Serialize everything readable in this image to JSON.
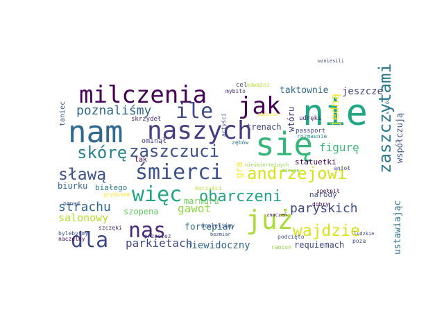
{
  "words": [
    {
      "text": "nie",
      "color": "#21a685"
    },
    {
      "text": "się",
      "color": "#35b779"
    },
    {
      "text": "nam",
      "color": "#31688e"
    },
    {
      "text": "naszych",
      "color": "#443b84"
    },
    {
      "text": "milczenia",
      "color": "#440154"
    },
    {
      "text": "jak",
      "color": "#440154"
    },
    {
      "text": "ile",
      "color": "#3e4989"
    },
    {
      "text": "już",
      "color": "#a8db34"
    },
    {
      "text": "śmierci",
      "color": "#3b528b"
    },
    {
      "text": "więc",
      "color": "#21a685"
    },
    {
      "text": "dla",
      "color": "#3e4989"
    },
    {
      "text": "nas",
      "color": "#482878"
    },
    {
      "text": "zaszczuci",
      "color": "#3b528b"
    },
    {
      "text": "skórę",
      "color": "#26828e"
    },
    {
      "text": "sławą",
      "color": "#3b528b"
    },
    {
      "text": "andrzejowi",
      "color": "#d8e219"
    },
    {
      "text": "obarczeni",
      "color": "#20a486"
    },
    {
      "text": "wajdzie",
      "color": "#d8e219"
    },
    {
      "text": "zaszczytami",
      "color": "#2a788e"
    },
    {
      "text": "poznaliśmy",
      "color": "#31688e"
    },
    {
      "text": "strachu",
      "color": "#31688e"
    },
    {
      "text": "paryskich",
      "color": "#3e4989"
    },
    {
      "text": "parkietach",
      "color": "#3e4989"
    },
    {
      "text": "niewidoczny",
      "color": "#31688e"
    },
    {
      "text": "jeszcze",
      "color": "#414487"
    },
    {
      "text": "taktownie",
      "color": "#31688e"
    },
    {
      "text": "jedną",
      "color": "#fde725"
    },
    {
      "text": "figurę",
      "color": "#35b779"
    },
    {
      "text": "gawot",
      "color": "#90d743"
    },
    {
      "text": "salonowy",
      "color": "#b5de2b"
    },
    {
      "text": "fortepian",
      "color": "#2c728e"
    },
    {
      "text": "requiemach",
      "color": "#3e4989"
    },
    {
      "text": "ustawiając",
      "color": "#2c728e"
    },
    {
      "text": "współczują",
      "color": "#3b528b"
    },
    {
      "text": "trenach",
      "color": "#3e4989"
    },
    {
      "text": "wtóru",
      "color": "#443b84"
    },
    {
      "text": "gra",
      "color": "#fde725"
    },
    {
      "text": "marmuru",
      "color": "#6ece58"
    },
    {
      "text": "szopena",
      "color": "#5ec962"
    },
    {
      "text": "narody",
      "color": "#3b528b"
    },
    {
      "text": "statuetki",
      "color": "#440154"
    },
    {
      "text": "biurku",
      "color": "#31688e"
    },
    {
      "text": "białego",
      "color": "#2a788e"
    },
    {
      "text": "taniec",
      "color": "#3b528b"
    },
    {
      "text": "tak",
      "color": "#440154"
    },
    {
      "text": "ominął",
      "color": "#443b84"
    },
    {
      "text": "skrzydeł",
      "color": "#482878"
    },
    {
      "text": "udręki",
      "color": "#482878"
    },
    {
      "text": "passport",
      "color": "#3e4989"
    },
    {
      "text": "rozmaunie",
      "color": "#21918c"
    },
    {
      "text": "stróż",
      "color": "#2a788e"
    },
    {
      "text": "pożycie",
      "color": "#fde725"
    },
    {
      "text": "mybito",
      "color": "#482878"
    },
    {
      "text": "cel",
      "color": "#3e4989"
    },
    {
      "text": "odważni",
      "color": "#b5de2b"
    },
    {
      "text": "artyści",
      "color": "#3b528b"
    },
    {
      "text": "zębów",
      "color": "#2c728e"
    },
    {
      "text": "nieśmiertelnych",
      "color": "#90d743"
    },
    {
      "text": "anioł",
      "color": "#3b528b"
    },
    {
      "text": "spełnił",
      "color": "#440154"
    },
    {
      "text": "dobry",
      "color": "#440154"
    },
    {
      "text": "ocaleliśmy",
      "color": "#3e4989"
    },
    {
      "text": "korzyści",
      "color": "#b5de2b"
    },
    {
      "text": "znaczeń",
      "color": "#440154"
    },
    {
      "text": "podcięto",
      "color": "#3b528b"
    },
    {
      "text": "ramion",
      "color": "#90d743"
    },
    {
      "text": "poza",
      "color": "#3e4989"
    },
    {
      "text": "ludzkie",
      "color": "#3e4989"
    },
    {
      "text": "przecież",
      "color": "#443b84"
    },
    {
      "text": "bezmiar",
      "color": "#3b528b"
    },
    {
      "text": "ponad",
      "color": "#3e4989"
    },
    {
      "text": "szczęki",
      "color": "#482878"
    },
    {
      "text": "bylebyśmy",
      "color": "#3e4989"
    },
    {
      "text": "naczelny",
      "color": "#440154"
    },
    {
      "text": "wzniesili",
      "color": "#3e4989"
    },
    {
      "text": "miruje",
      "color": "#6ece58"
    },
    {
      "text": "grydusem",
      "color": "#fde725"
    }
  ]
}
